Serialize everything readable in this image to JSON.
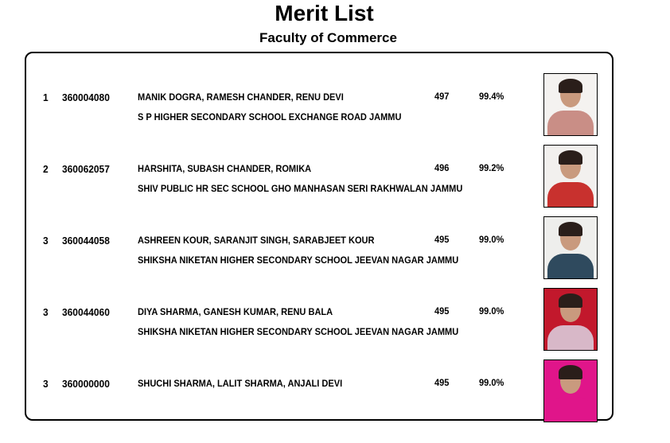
{
  "header": {
    "title": "Merit List",
    "subtitle": "Faculty of Commerce"
  },
  "rows": [
    {
      "rank": "1",
      "roll": "360004080",
      "name": "MANIK DOGRA, RAMESH CHANDER, RENU DEVI",
      "marks": "497",
      "percent": "99.4%",
      "school": "S P HIGHER SECONDARY SCHOOL EXCHANGE ROAD JAMMU",
      "photo_bg": "#f4f2f0",
      "shirt": "#c98e86"
    },
    {
      "rank": "2",
      "roll": "360062057",
      "name": "HARSHITA, SUBASH CHANDER, ROMIKA",
      "marks": "496",
      "percent": "99.2%",
      "school": "SHIV PUBLIC HR SEC SCHOOL GHO MANHASAN SERI RAKHWALAN JAMMU",
      "photo_bg": "#f2f0ee",
      "shirt": "#c8312e"
    },
    {
      "rank": "3",
      "roll": "360044058",
      "name": "ASHREEN KOUR, SARANJIT SINGH, SARABJEET KOUR",
      "marks": "495",
      "percent": "99.0%",
      "school": "SHIKSHA NIKETAN HIGHER SECONDARY SCHOOL JEEVAN NAGAR JAMMU",
      "photo_bg": "#eeeeec",
      "shirt": "#2f4a5e"
    },
    {
      "rank": "3",
      "roll": "360044060",
      "name": "DIYA SHARMA, GANESH KUMAR, RENU BALA",
      "marks": "495",
      "percent": "99.0%",
      "school": "SHIKSHA NIKETAN HIGHER SECONDARY SCHOOL JEEVAN NAGAR JAMMU",
      "photo_bg": "#c2182c",
      "shirt": "#d8b8c8"
    },
    {
      "rank": "3",
      "roll": "360000000",
      "name": "SHUCHI SHARMA, LALIT SHARMA, ANJALI DEVI",
      "marks": "495",
      "percent": "99.0%",
      "school": "",
      "photo_bg": "#e0158a",
      "shirt": "#e0158a"
    }
  ]
}
